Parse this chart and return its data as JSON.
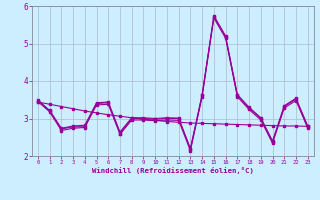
{
  "xlabel": "Windchill (Refroidissement éolien,°C)",
  "bg_color": "#cceeff",
  "line_color": "#990099",
  "grid_color": "#aabbcc",
  "label_color": "#990099",
  "xlim": [
    -0.5,
    23.5
  ],
  "ylim": [
    2.0,
    6.0
  ],
  "yticks": [
    2,
    3,
    4,
    5,
    6
  ],
  "xticks": [
    0,
    1,
    2,
    3,
    4,
    5,
    6,
    7,
    8,
    9,
    10,
    11,
    12,
    13,
    14,
    15,
    16,
    17,
    18,
    19,
    20,
    21,
    22,
    23
  ],
  "series1": [
    3.5,
    3.2,
    2.72,
    2.78,
    2.78,
    3.4,
    3.42,
    2.6,
    3.0,
    3.0,
    2.98,
    3.0,
    3.0,
    2.18,
    3.62,
    5.72,
    5.18,
    3.62,
    3.28,
    3.0,
    2.38,
    3.32,
    3.52,
    2.78
  ],
  "series2": [
    3.45,
    3.18,
    2.68,
    2.74,
    2.76,
    3.36,
    3.38,
    2.58,
    2.96,
    2.96,
    2.94,
    2.96,
    2.95,
    2.14,
    3.58,
    5.68,
    5.14,
    3.58,
    3.24,
    2.96,
    2.34,
    3.28,
    3.48,
    2.74
  ],
  "series3": [
    3.48,
    3.22,
    2.74,
    2.8,
    2.82,
    3.42,
    3.44,
    2.64,
    3.02,
    3.02,
    3.0,
    3.02,
    3.01,
    2.2,
    3.64,
    5.74,
    5.2,
    3.64,
    3.3,
    3.02,
    2.4,
    3.34,
    3.54,
    2.8
  ],
  "trend": [
    3.44,
    3.38,
    3.32,
    3.26,
    3.2,
    3.15,
    3.1,
    3.06,
    3.02,
    2.98,
    2.95,
    2.92,
    2.9,
    2.88,
    2.87,
    2.86,
    2.85,
    2.84,
    2.83,
    2.82,
    2.81,
    2.8,
    2.8,
    2.79
  ]
}
